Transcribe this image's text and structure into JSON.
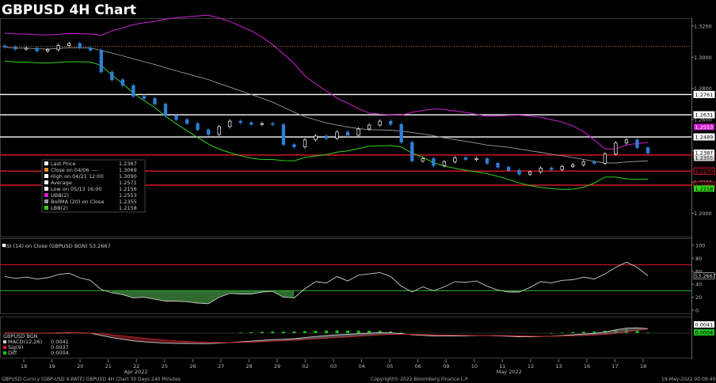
{
  "title": "GBPUSD 4H Chart",
  "footer": {
    "left": "GBPUSD Curncy (GBP-USD X-RATE) GBPUSD 4H Chart 30 Days 240 Minutes",
    "center": "Copyright© 2022 Bloomberg Finance L.P.",
    "right": "19-May-2022 00:09:40"
  },
  "colors": {
    "up": "#ffffff",
    "down": "#2e7fd6",
    "upper_band": "#d21fd2",
    "lower_band": "#33d11a",
    "mid_band": "#9a9a9a",
    "hline_white": "#ffffff",
    "hline_red": "#e0182a",
    "rsi_line": "#cccccc",
    "rsi_fill": "#2f6b2f",
    "macd_line": "#cccccc",
    "signal_line": "#d0202a",
    "diff_bar": "#19c21b"
  },
  "chart_data": [
    {
      "type": "candlestick",
      "title": "GBPUSD 4H Chart",
      "ylim": [
        1.185,
        1.325
      ],
      "yticks": [
        "1.3200",
        "1.3000",
        "1.2800",
        "1.2600",
        "1.2400",
        "1.2200",
        "1.2000"
      ],
      "x_labels": [
        "18",
        "19",
        "20",
        "21",
        "22",
        "25",
        "26",
        "27",
        "28",
        "29",
        "02",
        "03",
        "04",
        "05",
        "06",
        "09",
        "10",
        "11",
        "12",
        "13",
        "16",
        "17",
        "18"
      ],
      "month_labels": [
        {
          "text": "Apr 2022",
          "after": "21"
        },
        {
          "text": "May 2022",
          "after": "10"
        }
      ],
      "close": [
        1.3065,
        1.3052,
        1.3058,
        1.304,
        1.3048,
        1.3075,
        1.3088,
        1.306,
        1.3045,
        1.2905,
        1.2855,
        1.2818,
        1.275,
        1.2735,
        1.27,
        1.2625,
        1.26,
        1.2575,
        1.2535,
        1.2505,
        1.2555,
        1.259,
        1.258,
        1.257,
        1.2575,
        1.2568,
        1.244,
        1.2425,
        1.247,
        1.2495,
        1.248,
        1.252,
        1.25,
        1.254,
        1.2565,
        1.259,
        1.257,
        1.2455,
        1.2335,
        1.235,
        1.2305,
        1.233,
        1.2355,
        1.2345,
        1.235,
        1.232,
        1.2295,
        1.2275,
        1.225,
        1.2265,
        1.229,
        1.228,
        1.23,
        1.231,
        1.233,
        1.232,
        1.238,
        1.245,
        1.247,
        1.242,
        1.2385
      ],
      "legend": [
        {
          "label": "Last Price",
          "value": "1.2387",
          "color": "#ffffff"
        },
        {
          "label": "Close on 04/06 ----",
          "value": "1.3069",
          "color": "#e08a2a"
        },
        {
          "label": "High on 04/21 12:00",
          "value": "1.3090",
          "color": "#ffffff"
        },
        {
          "label": "Average",
          "value": "1.2571",
          "color": "#ffffff"
        },
        {
          "label": "Low on 05/13 16:00",
          "value": "1.2156",
          "color": "#ffffff"
        },
        {
          "label": "UBB(2)",
          "value": "1.2553",
          "color": "#d21fd2"
        },
        {
          "label": "BollMA (20) on Close",
          "value": "1.2355",
          "color": "#9a9a9a"
        },
        {
          "label": "LBB(2)",
          "value": "1.2158",
          "color": "#33d11a"
        }
      ],
      "hlines": [
        {
          "value": 1.3069,
          "color": "#e08a2a",
          "style": "dotted",
          "tag": ""
        },
        {
          "value": 1.2761,
          "color": "#ffffff",
          "tag": "1.2761"
        },
        {
          "value": 1.2631,
          "color": "#ffffff",
          "tag": "1.2631"
        },
        {
          "value": 1.2489,
          "color": "#ffffff",
          "tag": "1.2489"
        },
        {
          "value": 1.2373,
          "color": "#e0182a",
          "tag": "1.2373"
        },
        {
          "value": 1.227,
          "color": "#e0182a",
          "tag": "1.2270"
        },
        {
          "value": 1.218,
          "color": "#e0182a",
          "tag": "1.2180"
        }
      ],
      "price_tags": [
        {
          "text": "1.2553",
          "value": 1.2553,
          "bg": "#d21fd2",
          "fg": "#ffffff"
        },
        {
          "text": "1.2387",
          "value": 1.2387,
          "bg": "#ffffff",
          "fg": "#000000"
        },
        {
          "text": "1.2355",
          "value": 1.2355,
          "bg": "#dddddd",
          "fg": "#000000"
        },
        {
          "text": "1.2158",
          "value": 1.2158,
          "bg": "#33d11a",
          "fg": "#000000"
        }
      ]
    },
    {
      "type": "line",
      "title": "RSI (14) on Close (GBPUSD BGN) 53.2667",
      "ylim": [
        0,
        100
      ],
      "yticks": [
        "100",
        "80",
        "60",
        "40",
        "20",
        "0"
      ],
      "levels": [
        70,
        30
      ],
      "last_tag": "53.2667",
      "values": [
        52,
        49,
        51,
        48,
        50,
        55,
        57,
        50,
        46,
        32,
        27,
        24,
        19,
        20,
        17,
        14,
        14,
        13,
        11,
        10,
        20,
        26,
        25,
        25,
        28,
        29,
        20,
        19,
        33,
        44,
        42,
        52,
        45,
        54,
        56,
        58,
        52,
        37,
        28,
        36,
        30,
        36,
        44,
        43,
        45,
        37,
        31,
        28,
        28,
        35,
        44,
        42,
        46,
        47,
        51,
        48,
        56,
        66,
        74,
        66,
        53
      ]
    },
    {
      "type": "line",
      "title": "GBPUSD BGN",
      "legend": [
        {
          "label": "MACD(12,26)",
          "value": "0.0041",
          "color": "#cccccc"
        },
        {
          "label": "Sig(9)",
          "value": "0.0037",
          "color": "#d0202a"
        },
        {
          "label": "Diff",
          "value": "0.0004",
          "color": "#19c21b"
        }
      ],
      "last_tags": [
        {
          "text": "0.0041",
          "bg": "#ffffff",
          "fg": "#000000"
        },
        {
          "text": "0.0004",
          "bg": "#19c21b",
          "fg": "#000000"
        }
      ],
      "macd": [
        0.0002,
        0.0001,
        0.0001,
        0.0,
        0.0,
        0.0002,
        0.0004,
        0.0002,
        0.0,
        -0.002,
        -0.004,
        -0.0055,
        -0.007,
        -0.0078,
        -0.0085,
        -0.009,
        -0.0092,
        -0.0093,
        -0.0094,
        -0.0095,
        -0.009,
        -0.0085,
        -0.0078,
        -0.0072,
        -0.0065,
        -0.0058,
        -0.0055,
        -0.005,
        -0.004,
        -0.003,
        -0.0022,
        -0.0015,
        -0.001,
        -0.0005,
        0.0,
        0.0005,
        0.0003,
        -0.0005,
        -0.0015,
        -0.002,
        -0.0025,
        -0.0026,
        -0.0025,
        -0.0024,
        -0.0022,
        -0.0022,
        -0.0024,
        -0.0028,
        -0.0032,
        -0.0033,
        -0.003,
        -0.0027,
        -0.0022,
        -0.0015,
        -0.0008,
        -0.0002,
        0.001,
        0.003,
        0.0045,
        0.0048,
        0.0041
      ],
      "signal": [
        0.0003,
        0.0002,
        0.0002,
        0.0001,
        0.0001,
        0.0001,
        0.0002,
        0.0002,
        0.0001,
        -0.0005,
        -0.0015,
        -0.0025,
        -0.0035,
        -0.0045,
        -0.0055,
        -0.0063,
        -0.007,
        -0.0075,
        -0.008,
        -0.0083,
        -0.0085,
        -0.0085,
        -0.0083,
        -0.008,
        -0.0077,
        -0.0072,
        -0.0068,
        -0.0064,
        -0.0058,
        -0.0052,
        -0.0046,
        -0.004,
        -0.0034,
        -0.0028,
        -0.0022,
        -0.0016,
        -0.0012,
        -0.001,
        -0.0011,
        -0.0013,
        -0.0015,
        -0.0017,
        -0.0019,
        -0.002,
        -0.0021,
        -0.0021,
        -0.0022,
        -0.0023,
        -0.0025,
        -0.0027,
        -0.0028,
        -0.0028,
        -0.0026,
        -0.0024,
        -0.0021,
        -0.0017,
        -0.0011,
        -0.0002,
        0.001,
        0.0025,
        0.0037
      ]
    }
  ]
}
